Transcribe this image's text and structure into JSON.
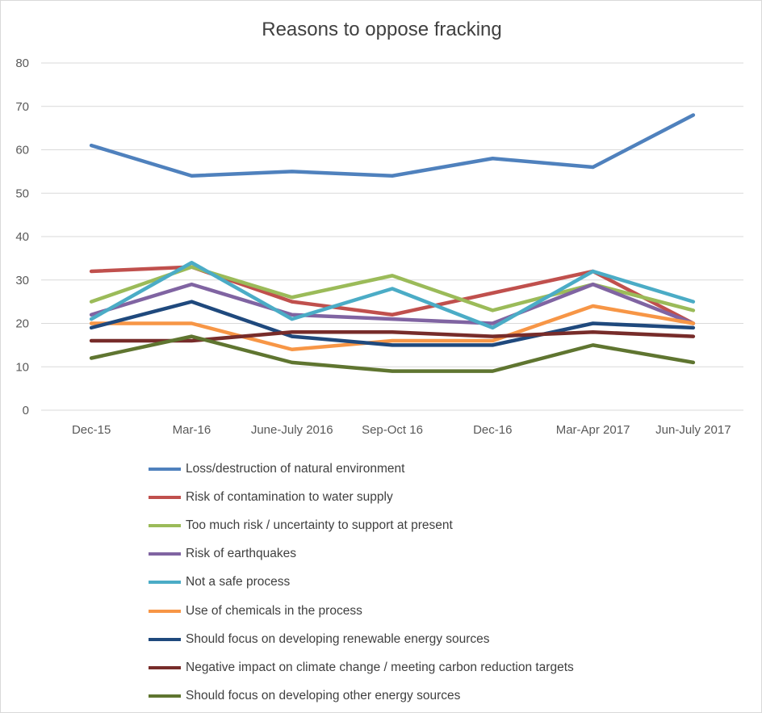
{
  "chart_data": {
    "type": "line",
    "title": "Reasons to oppose fracking",
    "categories": [
      "Dec-15",
      "Mar-16",
      "June-July 2016",
      "Sep-Oct 16",
      "Dec-16",
      "Mar-Apr 2017",
      "Jun-July 2017"
    ],
    "ylim": [
      0,
      80
    ],
    "yticks": [
      0,
      10,
      20,
      30,
      40,
      50,
      60,
      70,
      80
    ],
    "grid": true,
    "legend": "bottom",
    "series": [
      {
        "name": "Loss/destruction of natural environment",
        "color": "#4f81bd",
        "values": [
          61,
          54,
          55,
          54,
          58,
          56,
          68
        ]
      },
      {
        "name": "Risk of contamination to water supply",
        "color": "#c0504d",
        "values": [
          32,
          33,
          25,
          22,
          27,
          32,
          20
        ]
      },
      {
        "name": "Too much risk / uncertainty to support at present",
        "color": "#9bbb59",
        "values": [
          25,
          33,
          26,
          31,
          23,
          29,
          23
        ]
      },
      {
        "name": "Risk of earthquakes",
        "color": "#8064a2",
        "values": [
          22,
          29,
          22,
          21,
          20,
          29,
          20
        ]
      },
      {
        "name": "Not a safe process",
        "color": "#4bacc6",
        "values": [
          21,
          34,
          21,
          28,
          19,
          32,
          25
        ]
      },
      {
        "name": "Use of chemicals in the process",
        "color": "#f79646",
        "values": [
          20,
          20,
          14,
          16,
          16,
          24,
          20
        ]
      },
      {
        "name": "Should focus on developing renewable energy sources",
        "color": "#1f497d",
        "values": [
          19,
          25,
          17,
          15,
          15,
          20,
          19
        ]
      },
      {
        "name": "Negative impact on climate change / meeting carbon reduction targets",
        "color": "#772c2a",
        "values": [
          16,
          16,
          18,
          18,
          17,
          18,
          17
        ]
      },
      {
        "name": "Should focus on developing other energy sources",
        "color": "#5f7530",
        "values": [
          12,
          17,
          11,
          9,
          9,
          15,
          11
        ]
      }
    ]
  }
}
